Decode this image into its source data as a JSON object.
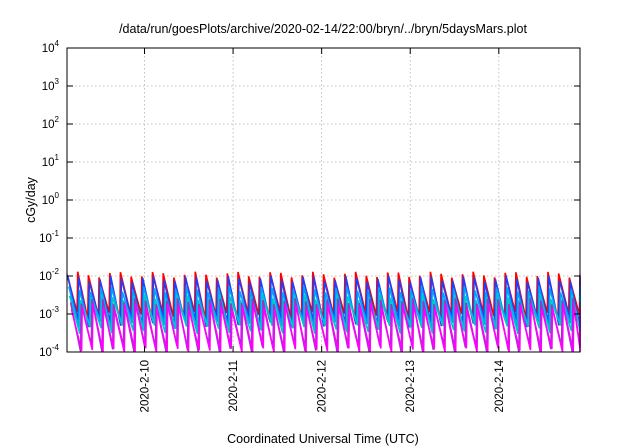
{
  "chart_data": {
    "type": "line",
    "title": "/data/run/goesPlots/archive/2020-02-14/22:00/bryn/../bryn/5daysMars.plot",
    "xlabel": "Coordinated Universal Time (UTC)",
    "ylabel": "cGy/day",
    "x_range": [
      "2020-02-09T03:00",
      "2020-02-14T22:00"
    ],
    "x_ticks": [
      "2020-2-10",
      "2020-2-11",
      "2020-2-12",
      "2020-2-13",
      "2020-2-14"
    ],
    "y_scale": "log",
    "y_range": [
      0.0001,
      10000
    ],
    "y_ticks": [
      {
        "base": "10",
        "exp": "-4"
      },
      {
        "base": "10",
        "exp": "-3"
      },
      {
        "base": "10",
        "exp": "-2"
      },
      {
        "base": "10",
        "exp": "-1"
      },
      {
        "base": "10",
        "exp": "0"
      },
      {
        "base": "10",
        "exp": "1"
      },
      {
        "base": "10",
        "exp": "2"
      },
      {
        "base": "10",
        "exp": "3"
      },
      {
        "base": "10",
        "exp": "4"
      }
    ],
    "grid": true,
    "sawtooth_cycles": 48,
    "series": [
      {
        "color": "#ff0000",
        "peak": 0.011,
        "trough": 0.0009
      },
      {
        "color": "#1f3fff",
        "peak": 0.0085,
        "trough": 0.0006
      },
      {
        "color": "#00a0ff",
        "peak": 0.0045,
        "trough": 0.0005
      },
      {
        "color": "#00c8c8",
        "peak": 0.0028,
        "trough": 0.0004
      },
      {
        "color": "#9933cc",
        "peak": 0.0022,
        "trough": 0.00012
      },
      {
        "color": "#ff00ff",
        "peak": 0.0016,
        "trough": 0.0001
      }
    ]
  }
}
